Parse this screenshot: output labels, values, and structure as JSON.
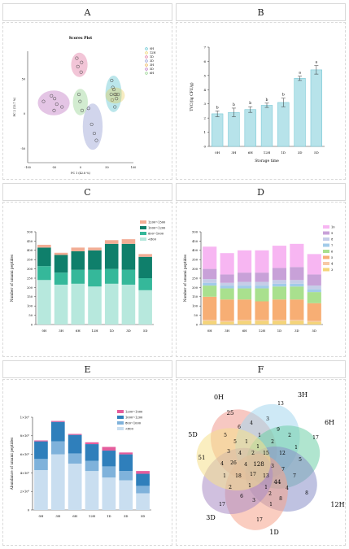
{
  "panels": [
    "A",
    "B",
    "C",
    "D",
    "E",
    "F"
  ],
  "chart_data": [
    {
      "panel": "A",
      "type": "scatter",
      "title": "Scores Plot",
      "xlabel": "PC 1 (42.8 %)",
      "ylabel": "PC 2 (13.7 %)",
      "xticks": [
        "-100",
        "-50",
        "0",
        "50",
        "100"
      ],
      "yticks": [
        "-50",
        "0",
        "50"
      ],
      "xlim": [
        -100,
        100
      ],
      "ylim": [
        -70,
        90
      ],
      "legend": [
        "0H",
        "12H",
        "1D",
        "3D",
        "3H",
        "5D",
        "6H"
      ],
      "series": [
        {
          "name": "0H",
          "color": "#3db7c7",
          "points": [
            [
              59,
              48
            ],
            [
              61,
              38
            ],
            [
              67,
              28
            ],
            [
              60,
              20
            ],
            [
              65,
              10
            ]
          ]
        },
        {
          "name": "12H",
          "color": "#e9c84a",
          "points": [
            [
              58,
              28
            ],
            [
              65,
              28
            ],
            [
              71,
              28
            ],
            [
              68,
              22
            ]
          ]
        },
        {
          "name": "1D",
          "color": "#d95a8d",
          "points": [
            [
              -7,
              80
            ],
            [
              2,
              74
            ],
            [
              -5,
              68
            ],
            [
              1,
              60
            ]
          ]
        },
        {
          "name": "3D",
          "color": "#7a86c8",
          "points": [
            [
              15,
              8
            ],
            [
              21,
              -15
            ],
            [
              26,
              -28
            ],
            [
              30,
              -38
            ]
          ]
        },
        {
          "name": "3H",
          "color": "#e6a12e",
          "points": [
            [
              63,
              35
            ]
          ]
        },
        {
          "name": "5D",
          "color": "#b15ab5",
          "points": [
            [
              -70,
              18
            ],
            [
              -55,
              26
            ],
            [
              -45,
              14
            ],
            [
              -49,
              22
            ],
            [
              -35,
              10
            ],
            [
              -50,
              5
            ]
          ]
        },
        {
          "name": "6H",
          "color": "#7fc877",
          "points": [
            [
              -3,
              28
            ],
            [
              -1,
              18
            ],
            [
              3,
              5
            ]
          ]
        }
      ]
    },
    {
      "panel": "B",
      "type": "bar",
      "categories": [
        "0H",
        "3H",
        "6H",
        "12H",
        "1D",
        "3D",
        "5D"
      ],
      "values": [
        2.3,
        2.4,
        2.6,
        2.9,
        3.1,
        4.8,
        5.4
      ],
      "errors": [
        0.2,
        0.3,
        0.2,
        0.15,
        0.3,
        0.15,
        0.3
      ],
      "letters": [
        "b",
        "b",
        "b",
        "b",
        "b",
        "a",
        "a"
      ],
      "xlabel": "Storage time",
      "ylabel": "TVC/(lg CFU/g)",
      "ylim": [
        0,
        7
      ],
      "yticks": [
        "0",
        "1",
        "2",
        "3",
        "4",
        "5",
        "6",
        "7"
      ],
      "bar_color": "#b7e3ea",
      "edge_color": "#6cc3d1"
    },
    {
      "panel": "C",
      "type": "bar",
      "stacked": true,
      "categories": [
        "0H",
        "3H",
        "6H",
        "12H",
        "1D",
        "3D",
        "5D"
      ],
      "ylabel": "Number of umami peptides",
      "ylim": [
        0,
        500
      ],
      "yticks": [
        "0",
        "50",
        "100",
        "150",
        "200",
        "250",
        "300",
        "350",
        "400",
        "450",
        "500"
      ],
      "series": [
        {
          "name": "<800",
          "color": "#b7e8dd",
          "values": [
            240,
            215,
            220,
            205,
            220,
            215,
            185
          ]
        },
        {
          "name": "800~1000",
          "color": "#35b89a",
          "values": [
            75,
            65,
            75,
            90,
            80,
            80,
            65
          ]
        },
        {
          "name": "1000~1200",
          "color": "#0f7f6b",
          "values": [
            100,
            95,
            100,
            105,
            135,
            140,
            115
          ]
        },
        {
          "name": "1200~1500",
          "color": "#f2ad95",
          "values": [
            15,
            12,
            20,
            15,
            20,
            25,
            15
          ]
        }
      ],
      "legend_order": [
        "1200~1500",
        "1000~1200",
        "800~1000",
        "<800"
      ]
    },
    {
      "panel": "D",
      "type": "bar",
      "stacked": true,
      "categories": [
        "0H",
        "3H",
        "6H",
        "12H",
        "1D",
        "3D",
        "5D"
      ],
      "ylabel": "Number of umami peptides",
      "ylim": [
        0,
        500
      ],
      "yticks": [
        "0",
        "50",
        "100",
        "150",
        "200",
        "250",
        "300",
        "350",
        "400",
        "450",
        "500"
      ],
      "series": [
        {
          "name": "3",
          "color": "#f4d47a",
          "values": [
            20,
            15,
            20,
            20,
            20,
            20,
            15
          ]
        },
        {
          "name": "4",
          "color": "#f8c9a6",
          "values": [
            5,
            5,
            5,
            5,
            5,
            5,
            5
          ]
        },
        {
          "name": "5",
          "color": "#f7ae74",
          "values": [
            125,
            115,
            110,
            100,
            110,
            110,
            95
          ]
        },
        {
          "name": "6",
          "color": "#a9e08e",
          "values": [
            60,
            60,
            60,
            70,
            70,
            70,
            60
          ]
        },
        {
          "name": "7",
          "color": "#a2cbe9",
          "values": [
            15,
            15,
            15,
            15,
            15,
            15,
            15
          ]
        },
        {
          "name": "8",
          "color": "#c5cde8",
          "values": [
            20,
            15,
            20,
            20,
            20,
            20,
            20
          ]
        },
        {
          "name": "9",
          "color": "#c8a1d8",
          "values": [
            55,
            45,
            50,
            50,
            65,
            70,
            60
          ]
        },
        {
          "name": "10",
          "color": "#f7b6f2",
          "values": [
            120,
            115,
            120,
            120,
            120,
            125,
            110
          ]
        }
      ],
      "legend_order": [
        "10",
        "9",
        "8",
        "7",
        "6",
        "5",
        "4",
        "3"
      ]
    },
    {
      "panel": "E",
      "type": "bar",
      "stacked": true,
      "categories": [
        "0H",
        "3H",
        "6H",
        "12H",
        "1D",
        "3D",
        "5D"
      ],
      "ylabel": "Abundance of umami peptides",
      "ylim": [
        0,
        1000000000
      ],
      "yticks": [
        "0",
        "2×10⁸",
        "4×10⁸",
        "6×10⁸",
        "8×10⁸",
        "1×10⁹"
      ],
      "series": [
        {
          "name": "<800",
          "color": "#c9def0",
          "values": [
            430000000,
            600000000,
            500000000,
            420000000,
            350000000,
            320000000,
            180000000
          ]
        },
        {
          "name": "800~1000",
          "color": "#7fb2db",
          "values": [
            120000000,
            140000000,
            110000000,
            110000000,
            120000000,
            100000000,
            80000000
          ]
        },
        {
          "name": "1000~1200",
          "color": "#2f7fbb",
          "values": [
            190000000,
            210000000,
            200000000,
            180000000,
            170000000,
            180000000,
            130000000
          ]
        },
        {
          "name": "1200~1500",
          "color": "#e45d9c",
          "values": [
            10000000,
            10000000,
            10000000,
            20000000,
            40000000,
            20000000,
            30000000
          ]
        }
      ],
      "legend_order": [
        "1200~1500",
        "1000~1200",
        "800~1000",
        "<800"
      ]
    },
    {
      "panel": "F",
      "type": "venn",
      "sets": [
        {
          "name": "0H",
          "color": "#f19b8f"
        },
        {
          "name": "3H",
          "color": "#a6d7ef"
        },
        {
          "name": "6H",
          "color": "#6fcfa7"
        },
        {
          "name": "12H",
          "color": "#8a8fc9"
        },
        {
          "name": "1D",
          "color": "#f5a48c"
        },
        {
          "name": "3D",
          "color": "#a98dc4"
        },
        {
          "name": "5D",
          "color": "#f6e08d"
        }
      ],
      "counts": [
        "25",
        "13",
        "17",
        "8",
        "17",
        "17",
        "51",
        "128",
        "6",
        "4",
        "3",
        "9",
        "2",
        "1",
        "5",
        "7",
        "4",
        "8",
        "1",
        "3",
        "6",
        "2",
        "1",
        "4",
        "3",
        "5",
        "1",
        "1",
        "2",
        "12",
        "7",
        "44",
        "1",
        "1",
        "18",
        "26",
        "4",
        "2",
        "15",
        "3",
        "13",
        "17",
        "4",
        "1",
        "2",
        "5"
      ]
    }
  ]
}
